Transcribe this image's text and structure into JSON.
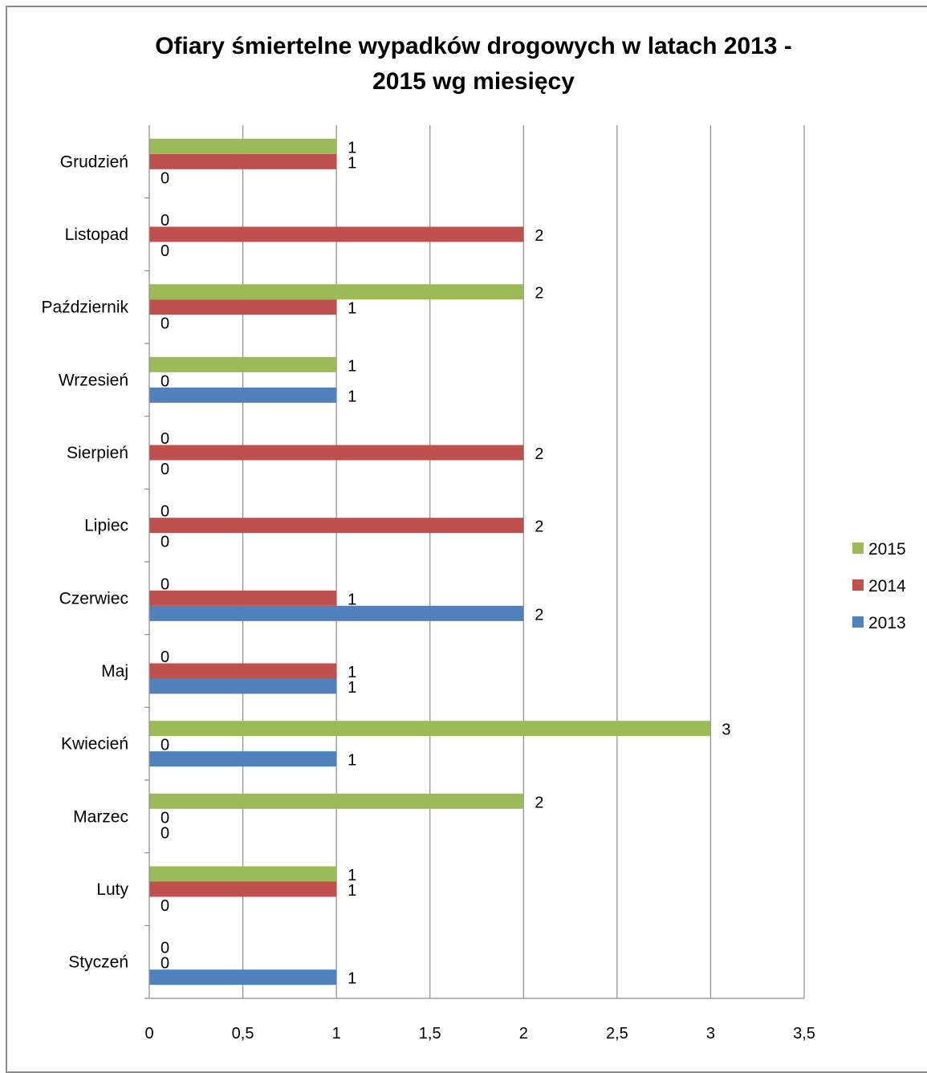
{
  "chart_data": {
    "type": "bar",
    "orientation": "horizontal",
    "title_lines": [
      "Ofiary śmiertelne wypadków drogowych w latach 2013 -",
      "2015 wg miesięcy"
    ],
    "categories": [
      "Styczeń",
      "Luty",
      "Marzec",
      "Kwiecień",
      "Maj",
      "Czerwiec",
      "Lipiec",
      "Sierpień",
      "Wrzesień",
      "Październik",
      "Listopad",
      "Grudzień"
    ],
    "series": [
      {
        "name": "2013",
        "color": "#4f81bd",
        "values": [
          1,
          0,
          0,
          1,
          1,
          2,
          0,
          0,
          1,
          0,
          0,
          0
        ]
      },
      {
        "name": "2014",
        "color": "#c0504d",
        "values": [
          0,
          1,
          0,
          0,
          1,
          1,
          2,
          2,
          0,
          1,
          2,
          1
        ]
      },
      {
        "name": "2015",
        "color": "#9bbb59",
        "values": [
          0,
          1,
          2,
          3,
          0,
          0,
          0,
          0,
          1,
          2,
          0,
          1
        ]
      }
    ],
    "xlim": [
      0,
      3.5
    ],
    "x_ticks": [
      "0",
      "0,5",
      "1",
      "1,5",
      "2",
      "2,5",
      "3",
      "3,5"
    ],
    "grid": "vertical",
    "legend": "right",
    "data_labels": true
  }
}
